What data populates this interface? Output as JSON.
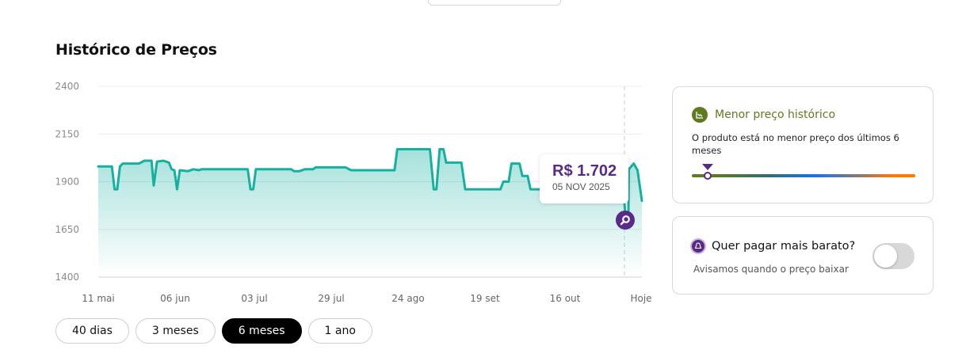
{
  "section": {
    "title": "Histórico de Preços"
  },
  "tooltip": {
    "price": "R$ 1.702",
    "date": "05 NOV 2025"
  },
  "ranges": [
    {
      "label": "40 dias",
      "active": false
    },
    {
      "label": "3 meses",
      "active": false
    },
    {
      "label": "6 meses",
      "active": true
    },
    {
      "label": "1 ano",
      "active": false
    }
  ],
  "lowest_card": {
    "icon": "chart-down-icon",
    "title": "Menor preço histórico",
    "description": "O produto está no menor preço dos últimos 6 meses",
    "accent_color": "#5f7a1f"
  },
  "alert_card": {
    "icon": "bell-icon",
    "title": "Quer pagar mais barato?",
    "subtitle": "Avisamos quando o preço baixar",
    "toggle_on": false
  },
  "colors": {
    "line": "#14b0a0",
    "marker": "#5a2a8a",
    "active_range": "#000000"
  },
  "chart_data": {
    "type": "area",
    "title": "Histórico de Preços",
    "xlabel": "",
    "ylabel": "",
    "ylim": [
      1400,
      2400
    ],
    "yticks": [
      2400,
      2150,
      1900,
      1650,
      1400
    ],
    "xticks": [
      "11 mai",
      "06 jun",
      "03 jul",
      "29 jul",
      "24 ago",
      "19 set",
      "16 out",
      "Hoje"
    ],
    "grid": true,
    "legend": false,
    "series": [
      {
        "name": "Preço",
        "points": [
          [
            0.0,
            1980
          ],
          [
            0.025,
            1980
          ],
          [
            0.03,
            1860
          ],
          [
            0.035,
            1860
          ],
          [
            0.04,
            1980
          ],
          [
            0.045,
            1995
          ],
          [
            0.075,
            1995
          ],
          [
            0.085,
            2010
          ],
          [
            0.098,
            2010
          ],
          [
            0.102,
            1880
          ],
          [
            0.108,
            2005
          ],
          [
            0.12,
            2010
          ],
          [
            0.13,
            2000
          ],
          [
            0.135,
            1965
          ],
          [
            0.14,
            1960
          ],
          [
            0.145,
            1860
          ],
          [
            0.15,
            1960
          ],
          [
            0.165,
            1955
          ],
          [
            0.175,
            1965
          ],
          [
            0.185,
            1960
          ],
          [
            0.19,
            1965
          ],
          [
            0.275,
            1965
          ],
          [
            0.28,
            1860
          ],
          [
            0.285,
            1860
          ],
          [
            0.29,
            1965
          ],
          [
            0.355,
            1965
          ],
          [
            0.36,
            1955
          ],
          [
            0.37,
            1955
          ],
          [
            0.38,
            1965
          ],
          [
            0.395,
            1965
          ],
          [
            0.4,
            1975
          ],
          [
            0.455,
            1975
          ],
          [
            0.465,
            1960
          ],
          [
            0.48,
            1960
          ],
          [
            0.485,
            1960
          ],
          [
            0.5,
            1960
          ],
          [
            0.545,
            1960
          ],
          [
            0.55,
            2070
          ],
          [
            0.61,
            2070
          ],
          [
            0.617,
            1860
          ],
          [
            0.622,
            1860
          ],
          [
            0.628,
            2070
          ],
          [
            0.635,
            2070
          ],
          [
            0.64,
            2000
          ],
          [
            0.668,
            2000
          ],
          [
            0.675,
            1860
          ],
          [
            0.74,
            1860
          ],
          [
            0.745,
            1900
          ],
          [
            0.755,
            1900
          ],
          [
            0.76,
            1995
          ],
          [
            0.775,
            1995
          ],
          [
            0.78,
            1930
          ],
          [
            0.79,
            1930
          ],
          [
            0.795,
            1860
          ],
          [
            0.87,
            1860
          ],
          [
            0.966,
            1860
          ],
          [
            0.968,
            1790
          ],
          [
            0.97,
            1702
          ],
          [
            0.975,
            1702
          ],
          [
            0.976,
            1965
          ],
          [
            0.985,
            1995
          ],
          [
            0.992,
            1960
          ],
          [
            1.0,
            1800
          ]
        ],
        "highlight": {
          "date": "05 NOV 2025",
          "value": 1702
        }
      }
    ]
  }
}
